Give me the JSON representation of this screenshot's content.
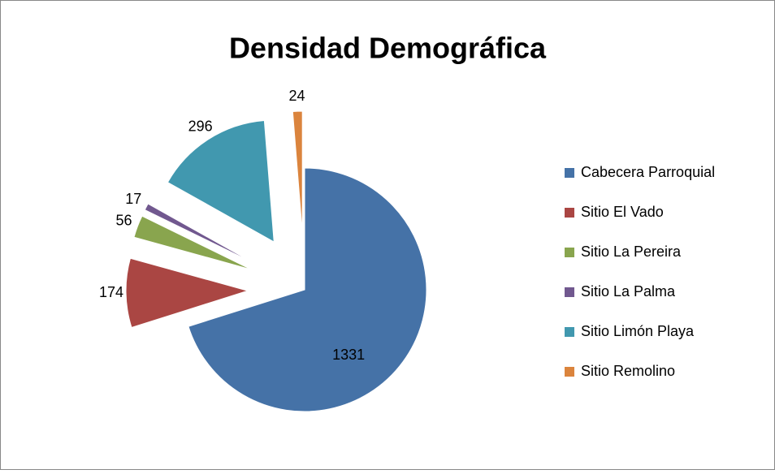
{
  "chart_data": {
    "type": "pie",
    "title": "Densidad Demográfica",
    "categories": [
      "Cabecera Parroquial",
      "Sitio El Vado",
      "Sitio La Pereira",
      "Sitio La Palma",
      "Sitio Limón Playa",
      "Sitio Remolino"
    ],
    "values": [
      1331,
      174,
      56,
      17,
      296,
      24
    ],
    "colors": [
      "#4572a7",
      "#aa4643",
      "#89a54e",
      "#71588f",
      "#4198af",
      "#db843d"
    ],
    "legend": "right"
  }
}
